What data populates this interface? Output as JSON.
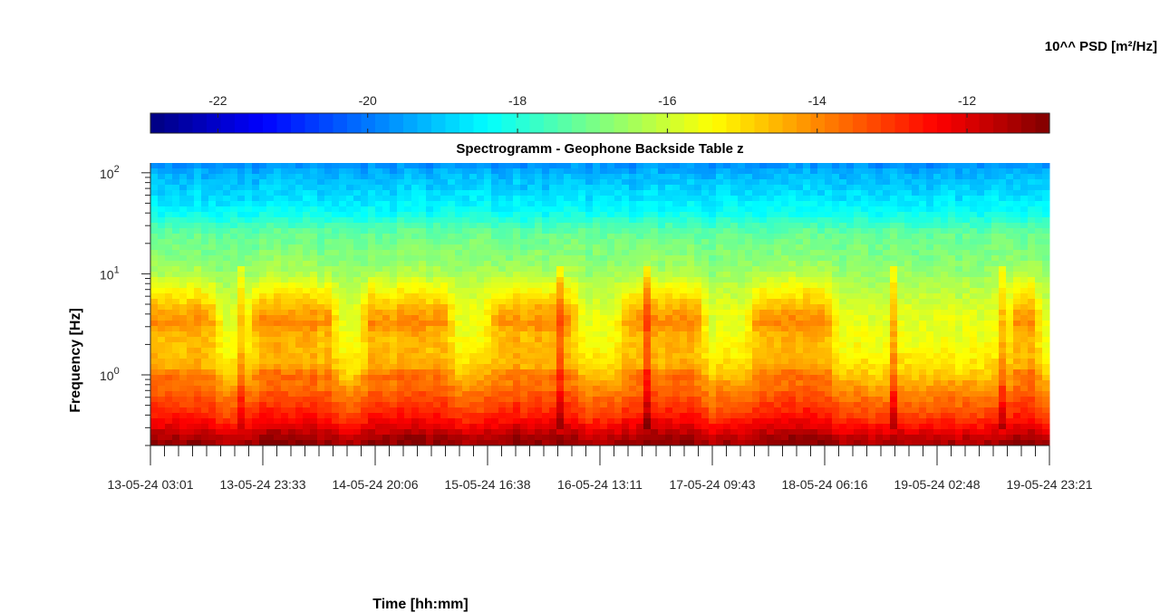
{
  "chart_data": {
    "type": "heatmap",
    "title": "Spectrogramm - Geophone Backside Table z",
    "xlabel": "Time [hh:mm]",
    "ylabel": "Frequency [Hz]",
    "yscale": "log",
    "ylim": [
      0.2,
      125
    ],
    "xlim": [
      "2024-05-13 03:01",
      "2024-05-19 23:21"
    ],
    "x_tick_labels": [
      "13-05-24  03:01",
      "13-05-24  23:33",
      "14-05-24  20:06",
      "15-05-24  16:38",
      "16-05-24  13:11",
      "17-05-24  09:43",
      "18-05-24  06:16",
      "19-05-24  02:48",
      "19-05-24  23:21"
    ],
    "y_ticks": [
      1,
      10,
      100
    ],
    "colorbar": {
      "label": "10^^ PSD [m²/Hz]",
      "range": [
        -22.9,
        -10.9
      ],
      "ticks": [
        -22,
        -20,
        -18,
        -16,
        -14,
        -12
      ],
      "tick_labels": [
        "-22",
        "-20",
        "-18",
        "-16",
        "-14",
        "-12"
      ],
      "colormap": "jet",
      "location": "top"
    },
    "psd_profile_log10": {
      "frequency_hz": [
        0.2,
        0.25,
        0.3,
        0.4,
        0.6,
        0.8,
        1.0,
        1.2,
        1.6,
        2.5,
        3.3,
        4.5,
        6.0,
        8.0,
        10,
        15,
        20,
        25,
        30,
        40,
        60,
        100,
        125
      ],
      "quiet_period": [
        -11.3,
        -11.8,
        -12.4,
        -13.2,
        -13.8,
        -14.3,
        -14.8,
        -15.0,
        -15.3,
        -15.6,
        -15.7,
        -15.8,
        -16.1,
        -16.3,
        -16.6,
        -16.9,
        -17.0,
        -17.2,
        -17.6,
        -18.3,
        -18.8,
        -19.3,
        -19.8
      ],
      "active_period": [
        -11.0,
        -11.4,
        -12.0,
        -12.7,
        -13.3,
        -13.8,
        -13.6,
        -14.4,
        -14.6,
        -14.5,
        -14.0,
        -14.5,
        -15.1,
        -15.7,
        -16.3,
        -16.8,
        -17.0,
        -17.2,
        -17.6,
        -18.3,
        -18.8,
        -19.3,
        -19.8
      ]
    },
    "activity_periods": [
      {
        "start": "2024-05-13 03:01",
        "end": "2024-05-13 14:00"
      },
      {
        "start": "2024-05-13 22:30",
        "end": "2024-05-14 11:30"
      },
      {
        "start": "2024-05-14 19:00",
        "end": "2024-05-15 08:30"
      },
      {
        "start": "2024-05-15 18:30",
        "end": "2024-05-16 07:30"
      },
      {
        "start": "2024-05-16 18:30",
        "end": "2024-05-17 07:00"
      },
      {
        "start": "2024-05-17 18:00",
        "end": "2024-05-18 06:30"
      },
      {
        "start": "2024-05-19 17:30",
        "end": "2024-05-19 20:00"
      }
    ],
    "transient_events": [
      "2024-05-13 20:00",
      "2024-05-16 06:00",
      "2024-05-16 21:30",
      "2024-05-18 18:30",
      "2024-05-19 14:30"
    ],
    "grid": false
  }
}
